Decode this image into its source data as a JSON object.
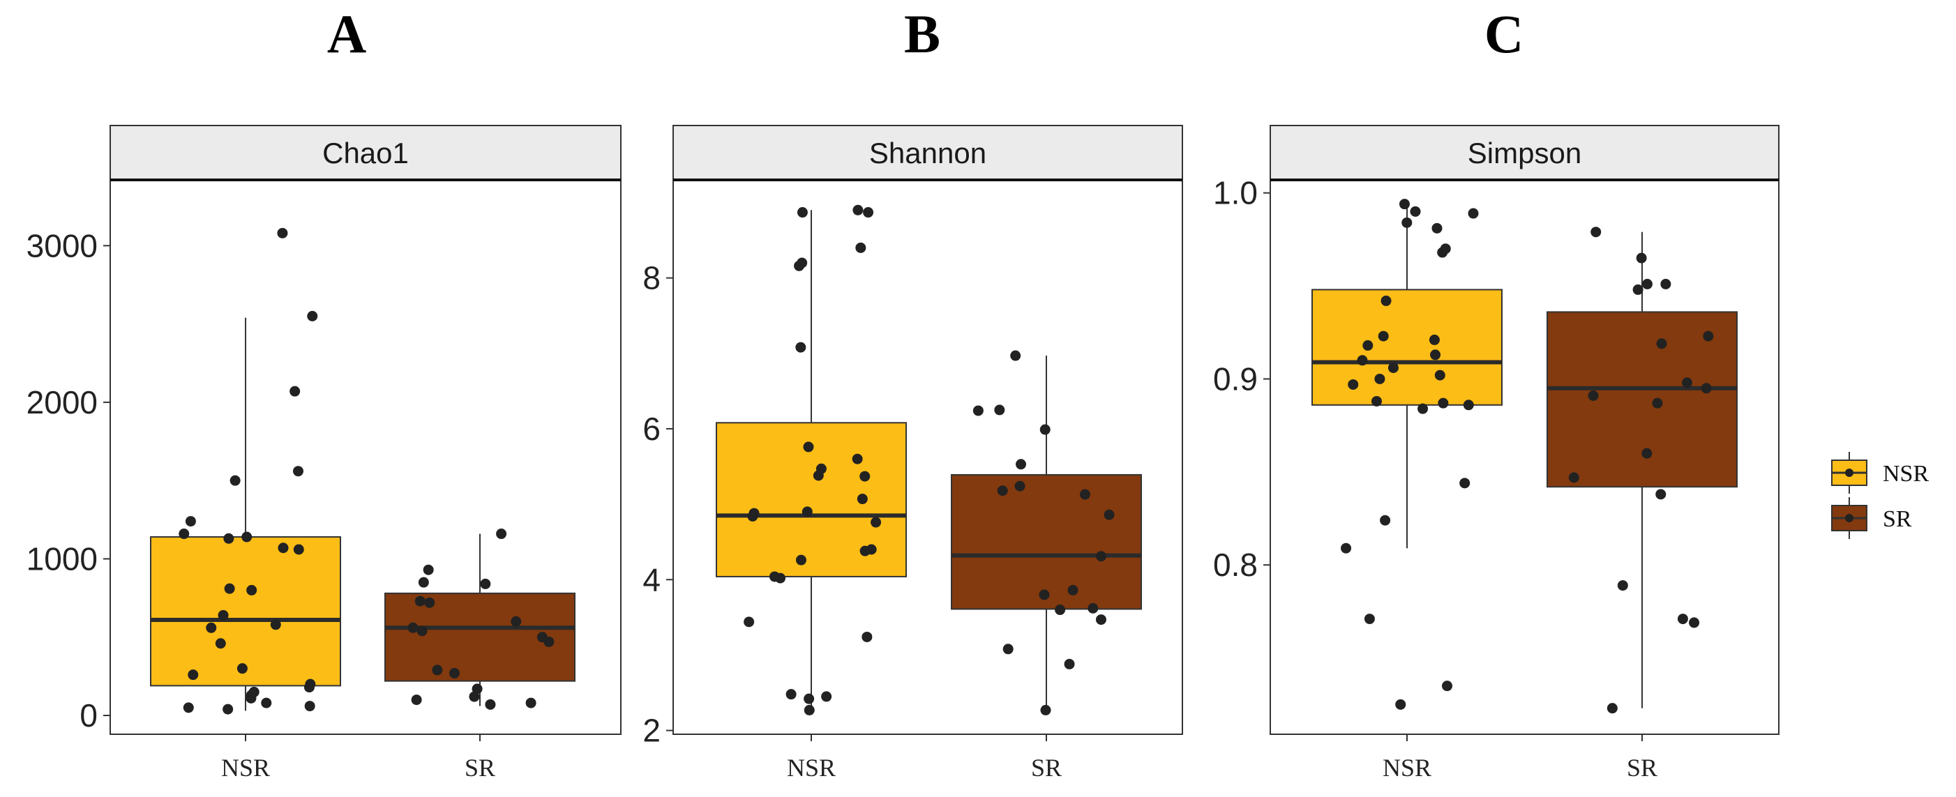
{
  "chart_data": [
    {
      "panel_label": "A",
      "type": "box",
      "title": "Chao1",
      "categories": [
        "NSR",
        "SR"
      ],
      "ylim": [
        -120,
        3420
      ],
      "yticks": [
        0,
        1000,
        2000,
        3000
      ],
      "boxes": [
        {
          "group": "NSR",
          "q1": 190,
          "median": 610,
          "q3": 1140,
          "whisker_low": 30,
          "whisker_high": 2540
        },
        {
          "group": "SR",
          "q1": 220,
          "median": 560,
          "q3": 780,
          "whisker_low": 60,
          "whisker_high": 1160
        }
      ],
      "points": [
        {
          "group": "NSR",
          "values": [
            3080,
            2550,
            2070,
            1560,
            1500,
            1240,
            1160,
            1140,
            1130,
            1070,
            1060,
            810,
            800,
            640,
            580,
            560,
            460,
            300,
            260,
            200,
            180,
            150,
            130,
            110,
            80,
            60,
            50,
            40
          ]
        },
        {
          "group": "SR",
          "values": [
            1160,
            930,
            850,
            840,
            730,
            720,
            600,
            560,
            540,
            500,
            470,
            290,
            270,
            170,
            120,
            100,
            80,
            70
          ]
        }
      ]
    },
    {
      "panel_label": "B",
      "type": "box",
      "title": "Shannon",
      "categories": [
        "NSR",
        "SR"
      ],
      "ylim": [
        1.95,
        9.3
      ],
      "yticks": [
        2,
        4,
        6,
        8
      ],
      "boxes": [
        {
          "group": "NSR",
          "q1": 4.04,
          "median": 4.85,
          "q3": 6.08,
          "whisker_low": 2.27,
          "whisker_high": 8.9
        },
        {
          "group": "SR",
          "q1": 3.61,
          "median": 4.32,
          "q3": 5.39,
          "whisker_low": 2.27,
          "whisker_high": 6.97
        }
      ],
      "points": [
        {
          "group": "NSR",
          "values": [
            8.9,
            8.87,
            8.87,
            8.4,
            8.2,
            8.16,
            7.08,
            5.76,
            5.6,
            5.47,
            5.38,
            5.37,
            5.07,
            4.9,
            4.88,
            4.84,
            4.76,
            4.4,
            4.38,
            4.26,
            4.04,
            4.02,
            3.44,
            3.24,
            2.48,
            2.45,
            2.42,
            2.27
          ]
        },
        {
          "group": "SR",
          "values": [
            6.97,
            6.25,
            6.24,
            5.99,
            5.53,
            5.24,
            5.18,
            5.13,
            4.86,
            4.31,
            3.86,
            3.8,
            3.62,
            3.6,
            3.47,
            3.08,
            2.88,
            2.27
          ]
        }
      ]
    },
    {
      "panel_label": "C",
      "type": "box",
      "title": "Simpson",
      "categories": [
        "NSR",
        "SR"
      ],
      "ylim": [
        0.709,
        1.007
      ],
      "yticks": [
        0.8,
        0.9,
        1.0
      ],
      "ytick_labels": [
        "0.8",
        "0.9",
        "1.0"
      ],
      "boxes": [
        {
          "group": "NSR",
          "q1": 0.886,
          "median": 0.909,
          "q3": 0.948,
          "whisker_low": 0.809,
          "whisker_high": 0.994
        },
        {
          "group": "SR",
          "q1": 0.842,
          "median": 0.895,
          "q3": 0.936,
          "whisker_low": 0.723,
          "whisker_high": 0.979
        }
      ],
      "points": [
        {
          "group": "NSR",
          "values": [
            0.994,
            0.99,
            0.989,
            0.984,
            0.981,
            0.97,
            0.968,
            0.942,
            0.923,
            0.921,
            0.918,
            0.913,
            0.91,
            0.906,
            0.902,
            0.9,
            0.897,
            0.888,
            0.887,
            0.886,
            0.884,
            0.844,
            0.824,
            0.809,
            0.771,
            0.735,
            0.725
          ]
        },
        {
          "group": "SR",
          "values": [
            0.979,
            0.965,
            0.951,
            0.951,
            0.948,
            0.923,
            0.919,
            0.898,
            0.895,
            0.891,
            0.887,
            0.86,
            0.847,
            0.838,
            0.789,
            0.771,
            0.769,
            0.723
          ]
        }
      ]
    }
  ],
  "legend": {
    "items": [
      {
        "label": "NSR",
        "color": "#FCBD16"
      },
      {
        "label": "SR",
        "color": "#833A0E"
      }
    ]
  },
  "colors": {
    "NSR": "#FCBD16",
    "SR": "#833A0E",
    "point": "#222222",
    "median": "#2b2b2b",
    "strip_bg": "#EBEBEB"
  }
}
